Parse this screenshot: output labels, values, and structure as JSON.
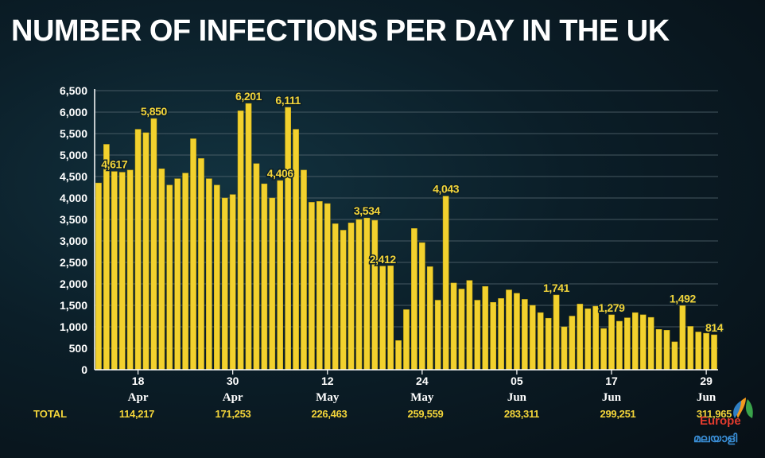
{
  "title": "NUMBER OF INFECTIONS PER DAY IN THE UK",
  "totals": {
    "label": "TOTAL",
    "values": [
      "114,217",
      "171,253",
      "226,463",
      "259,559",
      "283,311",
      "299,251",
      "311,965"
    ]
  },
  "logo": {
    "text_top": "Europe",
    "text_bottom": "മലയാളി"
  },
  "colors": {
    "bar": "#f2d12e",
    "bar_edge": "#c9a80f",
    "text": "#f2d43a",
    "axis": "#ffffff",
    "grid": "#5a6b74"
  },
  "chart_data": {
    "type": "bar",
    "title": "NUMBER OF INFECTIONS PER DAY IN THE UK",
    "ylim": [
      0,
      6500
    ],
    "yticks": [
      0,
      500,
      1000,
      1500,
      2000,
      2500,
      3000,
      3500,
      4000,
      4500,
      5000,
      5500,
      6000,
      6500
    ],
    "ytick_labels": [
      "0",
      "500",
      "1,000",
      "1,500",
      "2,000",
      "2,500",
      "3,000",
      "3,500",
      "4,000",
      "4,500",
      "5,000",
      "5,500",
      "6,000",
      "6,500"
    ],
    "grid": true,
    "x_tick_labels": [
      {
        "day": "18",
        "month": "Apr"
      },
      {
        "day": "30",
        "month": "Apr"
      },
      {
        "day": "12",
        "month": "May"
      },
      {
        "day": "24",
        "month": "May"
      },
      {
        "day": "05",
        "month": "Jun"
      },
      {
        "day": "17",
        "month": "Jun"
      },
      {
        "day": "29",
        "month": "Jun"
      }
    ],
    "x_tick_indices": [
      5,
      17,
      29,
      41,
      53,
      65,
      77
    ],
    "values": [
      4350,
      5250,
      4617,
      4600,
      4650,
      5600,
      5520,
      5850,
      4680,
      4300,
      4450,
      4580,
      5380,
      4920,
      4450,
      4300,
      4000,
      4080,
      6030,
      6201,
      4800,
      4330,
      4000,
      4406,
      6111,
      5600,
      4650,
      3900,
      3920,
      3870,
      3400,
      3250,
      3420,
      3500,
      3534,
      3480,
      2412,
      2420,
      680,
      1400,
      3290,
      2960,
      2400,
      1620,
      4043,
      2020,
      1880,
      2080,
      1620,
      1940,
      1570,
      1660,
      1860,
      1780,
      1640,
      1500,
      1330,
      1200,
      1741,
      1000,
      1250,
      1530,
      1420,
      1480,
      960,
      1279,
      1130,
      1210,
      1330,
      1280,
      1220,
      940,
      920,
      650,
      1492,
      1010,
      880,
      850,
      814
    ],
    "data_labels": [
      {
        "index": 2,
        "text": "4,617"
      },
      {
        "index": 7,
        "text": "5,850"
      },
      {
        "index": 19,
        "text": "6,201"
      },
      {
        "index": 23,
        "text": "4,406"
      },
      {
        "index": 24,
        "text": "6,111"
      },
      {
        "index": 34,
        "text": "3,534"
      },
      {
        "index": 36,
        "text": "2,412"
      },
      {
        "index": 44,
        "text": "4,043"
      },
      {
        "index": 58,
        "text": "1,741"
      },
      {
        "index": 65,
        "text": "1,279"
      },
      {
        "index": 74,
        "text": "1,492"
      },
      {
        "index": 78,
        "text": "814"
      }
    ]
  }
}
